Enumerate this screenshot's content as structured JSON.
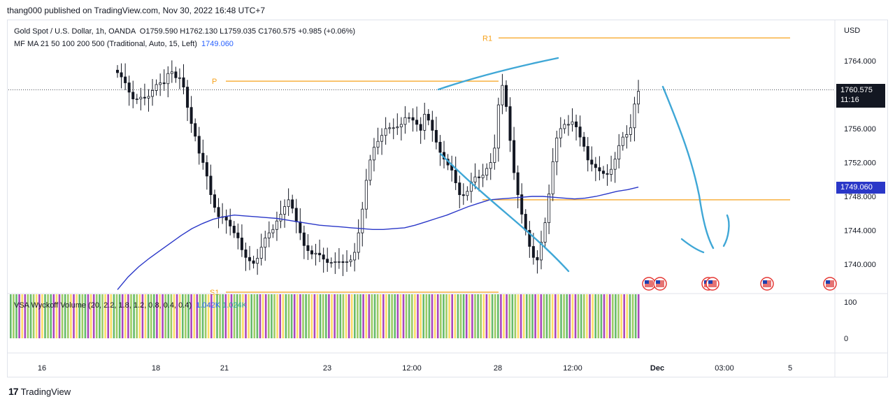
{
  "header": {
    "publisher": "thang000 published on TradingView.com, Nov 30, 2022 16:48 UTC+7"
  },
  "legend": {
    "symbol": "Gold Spot / U.S. Dollar, 1h, OANDA",
    "open": "O1759.590",
    "high": "H1762.130",
    "low": "L1759.035",
    "close": "C1760.575",
    "change": "+0.985 (+0.06%)",
    "ma_title": "MF MA 21 50 100 200 500 (Traditional, Auto, 15, Left)",
    "ma_value": "1749.060"
  },
  "volume_legend": {
    "title": "VSA Wyckoff Volume (20, 2.2, 1.8, 1.2, 0.8, 0.4, 0.4)",
    "value1": "1.042K",
    "value2": "1.024K"
  },
  "price_tags": {
    "last_price": "1760.575",
    "countdown": "11:16",
    "ma_price": "1749.060"
  },
  "footer": {
    "brand": "TradingView"
  },
  "chart_data": {
    "type": "candlestick",
    "currency_label": "USD",
    "y_ticks": [
      1764.0,
      1760.0,
      1756.0,
      1752.0,
      1748.0,
      1744.0,
      1740.0
    ],
    "y_tick_labels": [
      "1764.000",
      "1760.000",
      "1756.000",
      "1752.000",
      "1748.000",
      "1744.000",
      "1740.000"
    ],
    "ylim": [
      1736.5,
      1767.5
    ],
    "x_tick_labels": [
      "16",
      "18",
      "21",
      "23",
      "12:00",
      "28",
      "12:00",
      "Dec",
      "03:00",
      "5"
    ],
    "levels": [
      {
        "label": "R1",
        "price": 1766.7
      },
      {
        "label": "P",
        "price": 1761.6
      },
      {
        "label": "S1",
        "price": 1736.7
      },
      {
        "label": "",
        "price": 1747.6
      }
    ],
    "last_price": 1760.575,
    "ma_last": 1749.06,
    "volume_axis_labels": [
      "100",
      "0"
    ],
    "candles_close": [
      1762.6,
      1762.1,
      1761.4,
      1760.3,
      1759.5,
      1759.5,
      1759.7,
      1759.6,
      1759.8,
      1760.5,
      1761.2,
      1761.4,
      1761.3,
      1762.5,
      1762.7,
      1762.0,
      1762.0,
      1760.9,
      1758.5,
      1756.6,
      1755.1,
      1753.1,
      1752.0,
      1750.4,
      1748.2,
      1746.7,
      1745.6,
      1745.6,
      1745.2,
      1744.5,
      1743.7,
      1743.1,
      1741.7,
      1740.8,
      1740.4,
      1740.1,
      1740.7,
      1742.0,
      1743.1,
      1743.7,
      1744.1,
      1745.1,
      1745.9,
      1746.8,
      1747.6,
      1746.6,
      1745.0,
      1743.7,
      1742.2,
      1741.6,
      1741.2,
      1741.3,
      1741.1,
      1740.6,
      1740.2,
      1740.2,
      1740.3,
      1740.3,
      1740.2,
      1740.3,
      1740.5,
      1741.4,
      1743.7,
      1746.5,
      1749.9,
      1752.3,
      1753.8,
      1754.5,
      1755.2,
      1756.0,
      1756.1,
      1756.1,
      1756.2,
      1756.5,
      1757.3,
      1757.3,
      1757.0,
      1756.5,
      1755.8,
      1757.7,
      1757.0,
      1755.8,
      1754.4,
      1753.2,
      1752.4,
      1751.7,
      1751.1,
      1749.6,
      1748.2,
      1748.1,
      1748.6,
      1749.7,
      1750.3,
      1750.2,
      1750.5,
      1751.3,
      1752.0,
      1753.7,
      1758.8,
      1761.1,
      1758.6,
      1754.6,
      1750.8,
      1748.2,
      1745.9,
      1744.0,
      1742.1,
      1740.8,
      1740.5,
      1742.6,
      1744.9,
      1748.3,
      1752.1,
      1754.9,
      1756.0,
      1756.5,
      1756.5,
      1756.8,
      1756.2,
      1755.0,
      1753.9,
      1752.3,
      1751.8,
      1751.4,
      1751.0,
      1750.7,
      1750.6,
      1751.2,
      1752.4,
      1754.0,
      1755.0,
      1755.3,
      1756.1,
      1758.9,
      1760.4
    ],
    "ma_series": [
      1737.0,
      1738.5,
      1739.7,
      1740.7,
      1741.6,
      1742.5,
      1743.4,
      1744.2,
      1744.8,
      1745.3,
      1745.6,
      1745.8,
      1745.7,
      1745.6,
      1745.5,
      1745.4,
      1745.2,
      1745.0,
      1744.8,
      1744.6,
      1744.5,
      1744.4,
      1744.3,
      1744.2,
      1744.1,
      1744.1,
      1744.2,
      1744.3,
      1744.6,
      1745.0,
      1745.4,
      1745.8,
      1746.3,
      1746.8,
      1747.2,
      1747.6,
      1747.7,
      1747.8,
      1747.9,
      1748.0,
      1748.0,
      1747.9,
      1747.8,
      1747.7,
      1747.8,
      1748.0,
      1748.3,
      1748.6,
      1748.8,
      1749.1
    ],
    "annotations": [
      {
        "type": "freehand",
        "description": "rising wedge top line"
      },
      {
        "type": "freehand",
        "description": "falling lower line"
      },
      {
        "type": "freehand",
        "description": "projected drop path"
      }
    ],
    "grid": false
  }
}
